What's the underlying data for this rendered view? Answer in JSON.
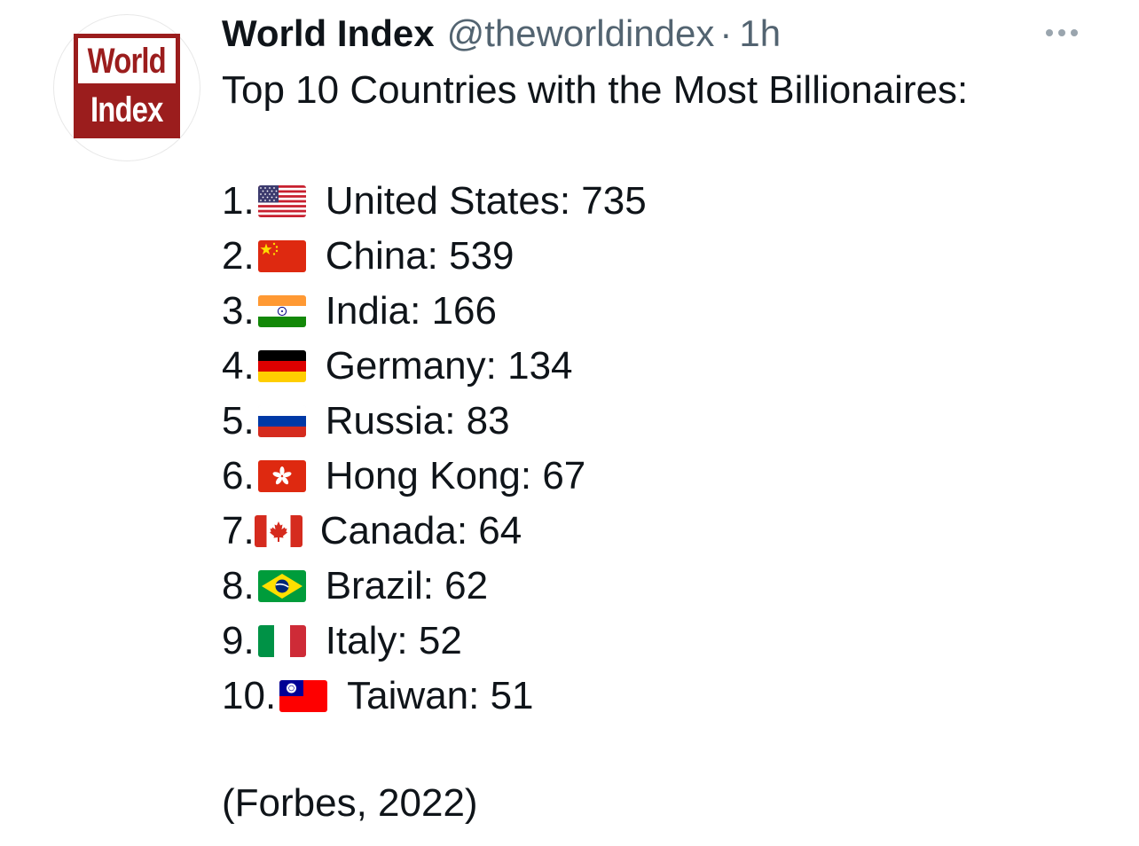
{
  "tweet": {
    "author": {
      "display_name": "World Index",
      "handle": "@theworldindex",
      "logo_line1": "World",
      "logo_line2": "Index",
      "brand_color": "#9b1d1d"
    },
    "separator": "·",
    "time": "1h",
    "more_icon": "more-dots-icon",
    "intro": "Top 10 Countries with the Most Billionaires:",
    "items": [
      {
        "rank": "1.",
        "flag": "flag-us-icon",
        "text": "United States: 735",
        "country": "United States",
        "count": 735
      },
      {
        "rank": "2.",
        "flag": "flag-cn-icon",
        "text": "China: 539",
        "country": "China",
        "count": 539
      },
      {
        "rank": "3.",
        "flag": "flag-in-icon",
        "text": "India: 166",
        "country": "India",
        "count": 166
      },
      {
        "rank": "4.",
        "flag": "flag-de-icon",
        "text": "Germany: 134",
        "country": "Germany",
        "count": 134
      },
      {
        "rank": "5.",
        "flag": "flag-ru-icon",
        "text": "Russia: 83",
        "country": "Russia",
        "count": 83
      },
      {
        "rank": "6.",
        "flag": "flag-hk-icon",
        "text": "Hong Kong: 67",
        "country": "Hong Kong",
        "count": 67
      },
      {
        "rank": "7.",
        "flag": "flag-ca-icon",
        "text": "Canada: 64",
        "country": "Canada",
        "count": 64
      },
      {
        "rank": "8.",
        "flag": "flag-br-icon",
        "text": "Brazil: 62",
        "country": "Brazil",
        "count": 62
      },
      {
        "rank": "9.",
        "flag": "flag-it-icon",
        "text": "Italy: 52",
        "country": "Italy",
        "count": 52
      },
      {
        "rank": "10.",
        "flag": "flag-tw-icon",
        "text": "Taiwan: 51",
        "country": "Taiwan",
        "count": 51
      }
    ],
    "source": "(Forbes, 2022)"
  }
}
